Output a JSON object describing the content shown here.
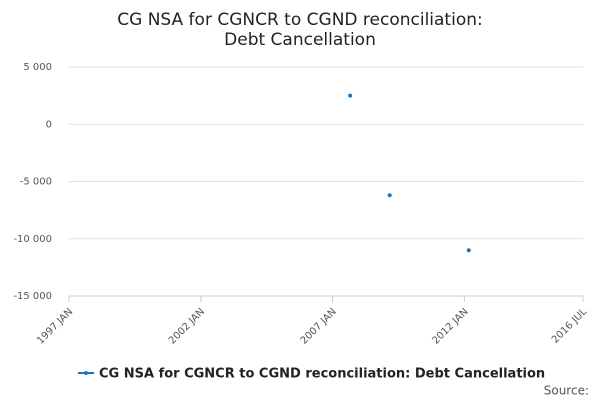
{
  "chart_data": {
    "type": "scatter",
    "title": "CG NSA for CGNCR to CGND reconciliation: Debt Cancellation",
    "x": [
      "2007 SEP",
      "2009 MAR",
      "2012 MAR"
    ],
    "series": [
      {
        "name": "CG NSA for CGNCR to CGND reconciliation: Debt Cancellation",
        "color": "#1b75bb",
        "values": [
          2500,
          -6200,
          -11000
        ]
      }
    ],
    "xlim": [
      "1997 JAN",
      "2016 JUL"
    ],
    "xticks": [
      "1997 JAN",
      "2002 JAN",
      "2007 JAN",
      "2012 JAN",
      "2016 JUL"
    ],
    "ylim": [
      -15000,
      5000
    ],
    "yticks": [
      {
        "value": 5000,
        "label": "5 000"
      },
      {
        "value": 0,
        "label": "0"
      },
      {
        "value": -5000,
        "label": "-5 000"
      },
      {
        "value": -10000,
        "label": "-10 000"
      },
      {
        "value": -15000,
        "label": "-15 000"
      }
    ],
    "grid": true,
    "source": "Source:"
  }
}
